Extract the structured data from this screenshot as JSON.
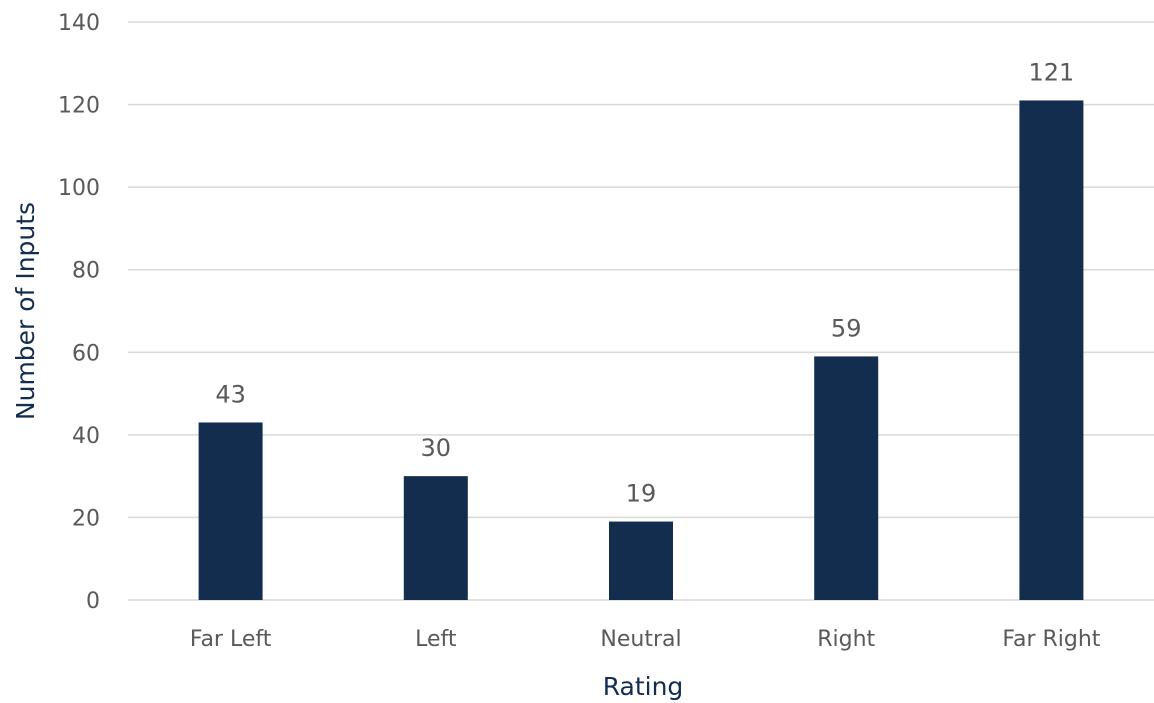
{
  "chart_data": {
    "type": "bar",
    "categories": [
      "Far Left",
      "Left",
      "Neutral",
      "Right",
      "Far Right"
    ],
    "values": [
      43,
      30,
      19,
      59,
      121
    ],
    "title": "",
    "xlabel": "Rating",
    "ylabel": "Number of Inputs",
    "ylim": [
      0,
      140
    ],
    "yticks": [
      0,
      20,
      40,
      60,
      80,
      100,
      120,
      140
    ],
    "grid": true,
    "legend": "none",
    "data_labels": true,
    "colors": {
      "bar": "#132d4f",
      "grid": "#d9d9d9",
      "tick_text": "#595959",
      "axis_title": "#132d4f"
    }
  }
}
